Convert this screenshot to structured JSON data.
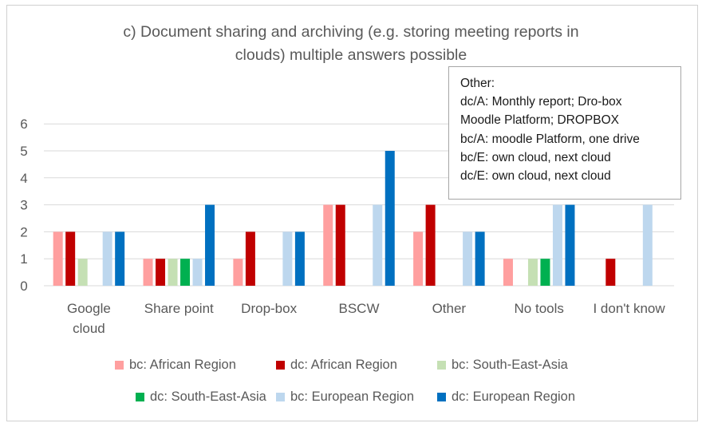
{
  "chart_data": {
    "type": "bar",
    "title": "c) Document sharing and archiving (e.g. storing meeting reports in clouds) multiple answers possible",
    "title_lines": [
      "c) Document sharing and archiving (e.g. storing meeting reports in",
      "clouds) multiple answers possible"
    ],
    "categories": [
      [
        "Google",
        "cloud"
      ],
      [
        "Share point"
      ],
      [
        "Drop-box"
      ],
      [
        "BSCW"
      ],
      [
        "Other"
      ],
      [
        "No tools"
      ],
      [
        "I don't know"
      ]
    ],
    "ylim": [
      0,
      6
    ],
    "yticks": [
      "0",
      "1",
      "2",
      "3",
      "4",
      "5",
      "6"
    ],
    "grid": true,
    "legend_position": "bottom",
    "series": [
      {
        "name": "bc: African Region",
        "color": "#ff9f9f",
        "values": [
          2,
          1,
          1,
          3,
          2,
          1,
          0
        ]
      },
      {
        "name": "dc: African Region",
        "color": "#c00000",
        "values": [
          2,
          1,
          2,
          3,
          3,
          0,
          1
        ]
      },
      {
        "name": "bc: South-East-Asia",
        "color": "#c5e0b4",
        "values": [
          1,
          1,
          0,
          0,
          0,
          1,
          0
        ]
      },
      {
        "name": "dc: South-East-Asia",
        "color": "#00b050",
        "values": [
          0,
          1,
          0,
          0,
          0,
          1,
          0
        ]
      },
      {
        "name": "bc: European Region",
        "color": "#bdd7ee",
        "values": [
          2,
          1,
          2,
          3,
          2,
          3,
          3
        ]
      },
      {
        "name": "dc: European Region",
        "color": "#0070c0",
        "values": [
          2,
          3,
          2,
          5,
          2,
          3,
          0
        ]
      }
    ],
    "annotation": {
      "lines": [
        "Other:",
        "dc/A: Monthly report; Dro-box",
        "Moodle Platform; DROPBOX",
        "bc/A: moodle Platform, one drive",
        "bc/E: own cloud, next cloud",
        "dc/E: own cloud, next cloud"
      ]
    }
  }
}
